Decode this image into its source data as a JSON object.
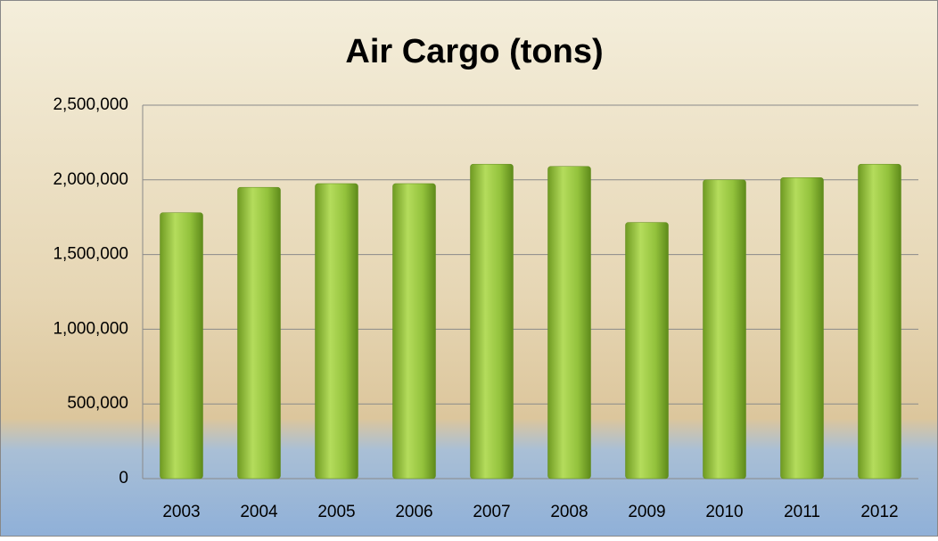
{
  "chart_data": {
    "type": "bar",
    "title": "Air Cargo (tons)",
    "categories": [
      "2003",
      "2004",
      "2005",
      "2006",
      "2007",
      "2008",
      "2009",
      "2010",
      "2011",
      "2012"
    ],
    "values": [
      1780000,
      1950000,
      1975000,
      1975000,
      2105000,
      2090000,
      1715000,
      2000000,
      2015000,
      2105000
    ],
    "color": "#8fbd3a",
    "ylim": [
      0,
      2500000
    ],
    "yticks": [
      0,
      {
        "value": 500000,
        "label": "500,000"
      },
      {
        "value": 1000000,
        "label": "1,000,000"
      },
      {
        "value": 1500000,
        "label": "1,500,000"
      },
      {
        "value": 2000000,
        "label": "2,000,000"
      },
      {
        "value": 2500000,
        "label": "2,500,000"
      }
    ],
    "grid": true
  }
}
